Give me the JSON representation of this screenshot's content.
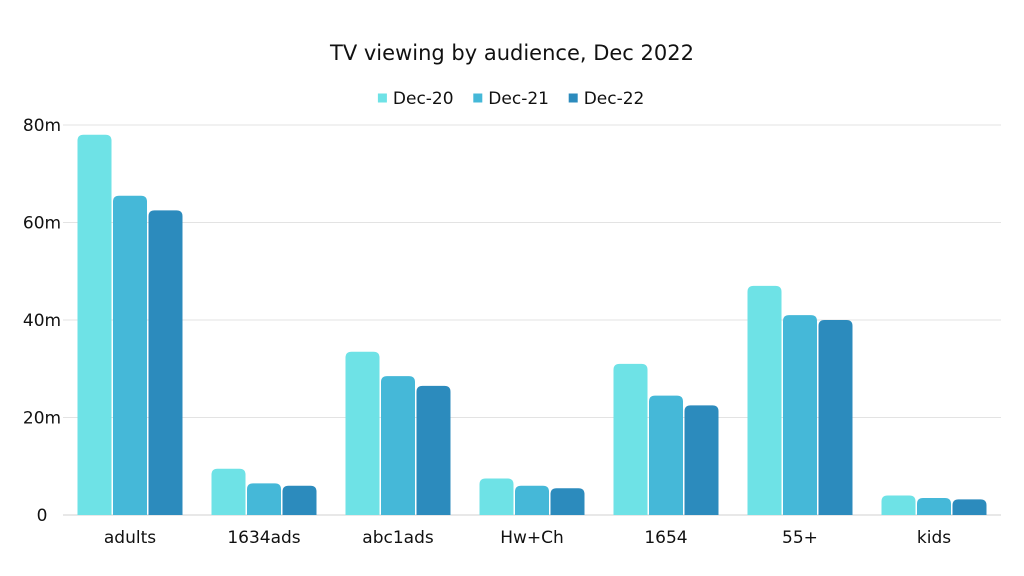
{
  "chart_data": {
    "type": "bar",
    "title": "TV viewing by audience, Dec 2022",
    "xlabel": "",
    "ylabel": "",
    "categories": [
      "adults",
      "1634ads",
      "abc1ads",
      "Hw+Ch",
      "1654",
      "55+",
      "kids"
    ],
    "series": [
      {
        "name": "Dec-20",
        "color": "#6ee2e6",
        "values": [
          78,
          9.5,
          33.5,
          7.5,
          31,
          47,
          4
        ]
      },
      {
        "name": "Dec-21",
        "color": "#45b8d8",
        "values": [
          65.5,
          6.5,
          28.5,
          6,
          24.5,
          41,
          3.5
        ]
      },
      {
        "name": "Dec-22",
        "color": "#2c8bbd",
        "values": [
          62.5,
          6,
          26.5,
          5.5,
          22.5,
          40,
          3.2
        ]
      }
    ],
    "ylim": [
      0,
      80
    ],
    "yticks": [
      {
        "value": 0,
        "label": "0"
      },
      {
        "value": 20,
        "label": "20m"
      },
      {
        "value": 40,
        "label": "40m"
      },
      {
        "value": 60,
        "label": "60m"
      },
      {
        "value": 80,
        "label": "80m"
      }
    ],
    "grid": true,
    "legend_position": "top-center"
  }
}
